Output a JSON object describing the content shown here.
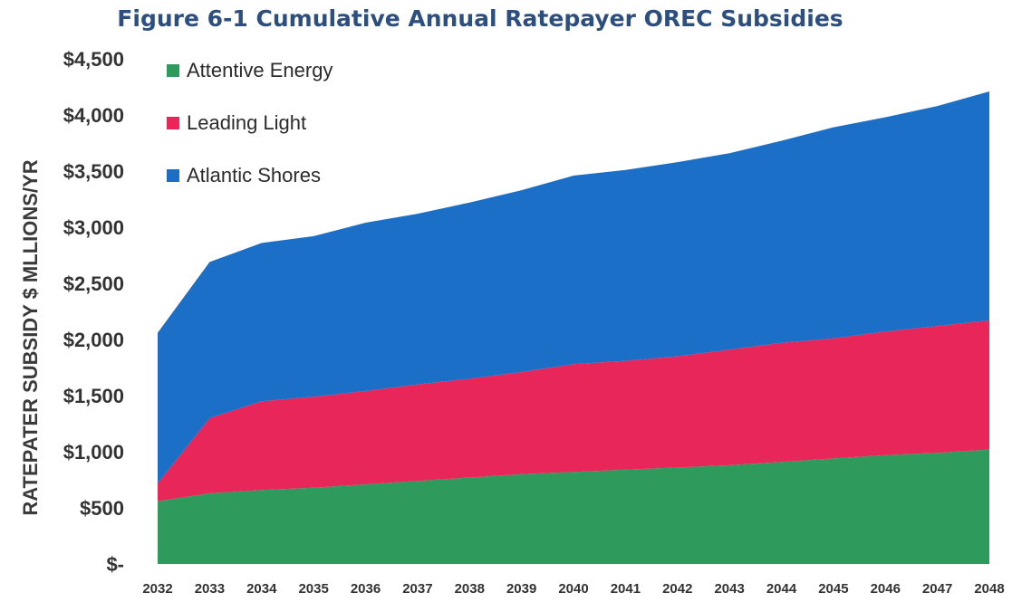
{
  "chart_data": {
    "type": "area",
    "stacked": true,
    "title": "Figure 6-1 Cumulative Annual Ratepayer OREC Subsidies",
    "ylabel": "RATEPATER SUBSIDY $ MLLIONS/YR",
    "xlabel": "",
    "categories": [
      "2032",
      "2033",
      "2034",
      "2035",
      "2036",
      "2037",
      "2038",
      "2039",
      "2040",
      "2041",
      "2042",
      "2043",
      "2044",
      "2045",
      "2046",
      "2047",
      "2048"
    ],
    "y_tick_labels": [
      "$-",
      "$500",
      "$1,000",
      "$1,500",
      "$2,000",
      "$2,500",
      "$3,000",
      "$3,500",
      "$4,000",
      "$4,500"
    ],
    "y_tick_values": [
      0,
      500,
      1000,
      1500,
      2000,
      2500,
      3000,
      3500,
      4000,
      4500
    ],
    "ylim": [
      0,
      4500
    ],
    "grid": false,
    "legend_position": "top-left",
    "series": [
      {
        "name": "Attentive Energy",
        "color": "#2e9a5c",
        "values": [
          560,
          630,
          660,
          680,
          710,
          740,
          770,
          800,
          820,
          840,
          860,
          880,
          910,
          940,
          970,
          990,
          1020
        ]
      },
      {
        "name": "Leading Light",
        "color": "#e8265a",
        "values": [
          160,
          670,
          790,
          810,
          830,
          860,
          880,
          910,
          960,
          970,
          990,
          1030,
          1060,
          1070,
          1100,
          1130,
          1150
        ]
      },
      {
        "name": "Atlantic Shores",
        "color": "#1c6fc6",
        "values": [
          1340,
          1390,
          1410,
          1430,
          1500,
          1520,
          1570,
          1620,
          1680,
          1700,
          1730,
          1750,
          1800,
          1880,
          1910,
          1960,
          2040
        ]
      }
    ]
  }
}
